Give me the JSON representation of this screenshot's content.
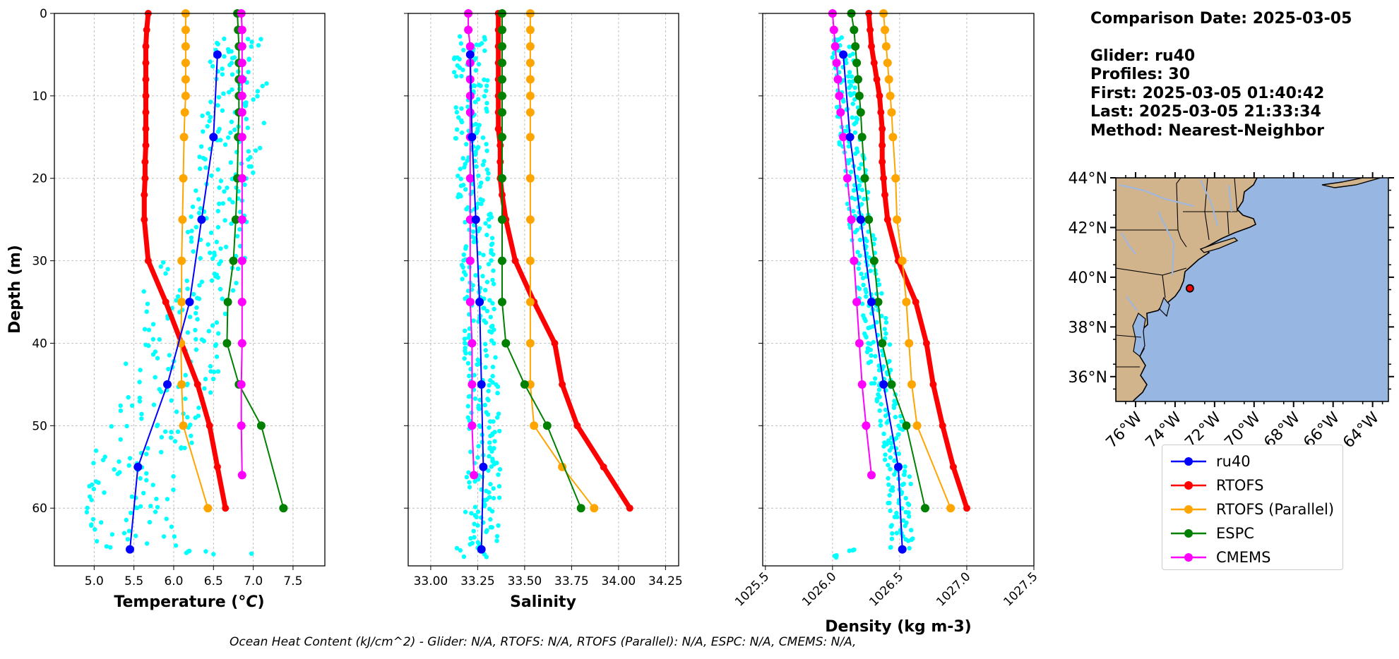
{
  "info": {
    "comparison_date": "Comparison Date: 2025-03-05",
    "glider": "Glider: ru40",
    "profiles": "Profiles: 30",
    "first": "First: 2025-03-05 01:40:42",
    "last": "Last: 2025-03-05 21:33:34",
    "method": "Method: Nearest-Neighbor"
  },
  "footer": "Ocean Heat Content (kJ/cm^2) - Glider: N/A,  RTOFS: N/A,  RTOFS (Parallel): N/A,  ESPC: N/A,  CMEMS: N/A,",
  "colors": {
    "ru40": "#0000ff",
    "RTOFS": "#ff0000",
    "RTOFS (Parallel)": "#ffa500",
    "ESPC": "#008000",
    "CMEMS": "#ff00ff",
    "glider_points": "#00ffff",
    "land": "#d2b48c",
    "ocean": "#97b6e1",
    "rivers": "#9fb7dd"
  },
  "legend": [
    {
      "name": "ru40",
      "color": "#0000ff"
    },
    {
      "name": "RTOFS",
      "color": "#ff0000"
    },
    {
      "name": "RTOFS (Parallel)",
      "color": "#ffa500"
    },
    {
      "name": "ESPC",
      "color": "#008000"
    },
    {
      "name": "CMEMS",
      "color": "#ff00ff"
    }
  ],
  "chart_data": [
    {
      "type": "line",
      "title": "",
      "xlabel": "Temperature (°C)",
      "ylabel": "Depth (m)",
      "xlim": [
        4.5,
        7.9
      ],
      "ylim": [
        67,
        0
      ],
      "yaxis_inverted": true,
      "xticks": [
        "5.0",
        "5.5",
        "6.0",
        "6.5",
        "7.0",
        "7.5"
      ],
      "yticks": [
        "0",
        "10",
        "20",
        "30",
        "40",
        "50",
        "60"
      ],
      "grid": true,
      "glider_cloud_color": "#00ffff",
      "series": [
        {
          "name": "ru40",
          "depth": [
            5,
            15,
            25,
            35,
            45,
            55,
            65
          ],
          "values": [
            6.55,
            6.5,
            6.35,
            6.2,
            5.92,
            5.55,
            5.45
          ]
        },
        {
          "name": "RTOFS",
          "depth": [
            0,
            2,
            4,
            6,
            8,
            10,
            12,
            14,
            16,
            18,
            20,
            22,
            25,
            30,
            35,
            40,
            45,
            50,
            55,
            60
          ],
          "values": [
            5.68,
            5.66,
            5.65,
            5.65,
            5.65,
            5.65,
            5.65,
            5.65,
            5.65,
            5.64,
            5.64,
            5.63,
            5.63,
            5.68,
            5.9,
            6.1,
            6.3,
            6.45,
            6.55,
            6.65
          ]
        },
        {
          "name": "RTOFS (Parallel)",
          "depth": [
            0,
            2,
            4,
            6,
            8,
            10,
            12,
            15,
            20,
            25,
            30,
            35,
            40,
            45,
            50,
            60
          ],
          "values": [
            6.15,
            6.15,
            6.15,
            6.15,
            6.15,
            6.15,
            6.14,
            6.13,
            6.12,
            6.11,
            6.1,
            6.1,
            6.09,
            6.1,
            6.12,
            6.43
          ]
        },
        {
          "name": "ESPC",
          "depth": [
            0,
            2,
            4,
            6,
            8,
            10,
            12,
            15,
            20,
            25,
            30,
            35,
            40,
            45,
            50,
            60
          ],
          "values": [
            6.8,
            6.81,
            6.82,
            6.82,
            6.82,
            6.82,
            6.82,
            6.81,
            6.8,
            6.78,
            6.75,
            6.68,
            6.67,
            6.82,
            7.1,
            7.38
          ]
        },
        {
          "name": "CMEMS",
          "depth": [
            0,
            2,
            4,
            6,
            8,
            10,
            12,
            15,
            20,
            25,
            30,
            35,
            40,
            45,
            50,
            56
          ],
          "values": [
            6.85,
            6.86,
            6.86,
            6.86,
            6.86,
            6.86,
            6.86,
            6.86,
            6.86,
            6.86,
            6.86,
            6.86,
            6.86,
            6.85,
            6.85,
            6.86
          ]
        }
      ]
    },
    {
      "type": "line",
      "title": "",
      "xlabel": "Salinity",
      "ylabel": "",
      "xlim": [
        32.88,
        34.32
      ],
      "ylim": [
        67,
        0
      ],
      "yaxis_inverted": true,
      "xticks": [
        "33.00",
        "33.25",
        "33.50",
        "33.75",
        "34.00",
        "34.25"
      ],
      "grid": true,
      "series": [
        {
          "name": "ru40",
          "depth": [
            5,
            15,
            25,
            35,
            45,
            55,
            65
          ],
          "values": [
            33.21,
            33.22,
            33.24,
            33.26,
            33.27,
            33.28,
            33.27
          ]
        },
        {
          "name": "RTOFS",
          "depth": [
            0,
            2,
            4,
            6,
            8,
            10,
            12,
            14,
            16,
            18,
            20,
            22,
            25,
            30,
            35,
            40,
            45,
            50,
            55,
            60
          ],
          "values": [
            33.36,
            33.36,
            33.36,
            33.36,
            33.36,
            33.36,
            33.36,
            33.36,
            33.37,
            33.37,
            33.37,
            33.38,
            33.4,
            33.45,
            33.55,
            33.66,
            33.7,
            33.78,
            33.92,
            34.06
          ]
        },
        {
          "name": "RTOFS (Parallel)",
          "depth": [
            0,
            2,
            4,
            6,
            8,
            10,
            12,
            15,
            20,
            25,
            30,
            35,
            40,
            45,
            50,
            55,
            60
          ],
          "values": [
            33.53,
            33.53,
            33.53,
            33.53,
            33.53,
            33.53,
            33.53,
            33.53,
            33.53,
            33.53,
            33.53,
            33.53,
            33.53,
            33.53,
            33.55,
            33.7,
            33.87
          ]
        },
        {
          "name": "ESPC",
          "depth": [
            0,
            2,
            4,
            6,
            8,
            10,
            12,
            15,
            20,
            25,
            30,
            35,
            40,
            45,
            50,
            60
          ],
          "values": [
            33.38,
            33.38,
            33.38,
            33.38,
            33.38,
            33.38,
            33.38,
            33.38,
            33.38,
            33.38,
            33.38,
            33.38,
            33.4,
            33.5,
            33.62,
            33.8
          ]
        },
        {
          "name": "CMEMS",
          "depth": [
            0,
            2,
            4,
            6,
            8,
            10,
            12,
            15,
            20,
            25,
            30,
            35,
            40,
            45,
            50,
            56
          ],
          "values": [
            33.2,
            33.2,
            33.21,
            33.21,
            33.21,
            33.21,
            33.21,
            33.21,
            33.21,
            33.21,
            33.21,
            33.21,
            33.22,
            33.22,
            33.22,
            33.23
          ]
        }
      ]
    },
    {
      "type": "line",
      "title": "",
      "xlabel": "Density (kg m-3)",
      "ylabel": "",
      "xlim": [
        1025.48,
        1027.5
      ],
      "ylim": [
        67,
        0
      ],
      "yaxis_inverted": true,
      "xticks": [
        "1025.5",
        "1026.0",
        "1026.5",
        "1027.0",
        "1027.5"
      ],
      "grid": true,
      "series": [
        {
          "name": "ru40",
          "depth": [
            5,
            15,
            25,
            35,
            45,
            55,
            65
          ],
          "values": [
            1026.08,
            1026.13,
            1026.21,
            1026.29,
            1026.38,
            1026.49,
            1026.52
          ]
        },
        {
          "name": "RTOFS",
          "depth": [
            0,
            2,
            4,
            6,
            8,
            10,
            12,
            14,
            16,
            18,
            20,
            22,
            25,
            30,
            35,
            40,
            45,
            50,
            55,
            60
          ],
          "values": [
            1026.27,
            1026.28,
            1026.29,
            1026.31,
            1026.33,
            1026.35,
            1026.36,
            1026.37,
            1026.37,
            1026.37,
            1026.38,
            1026.39,
            1026.41,
            1026.49,
            1026.62,
            1026.7,
            1026.75,
            1026.82,
            1026.9,
            1027.0
          ]
        },
        {
          "name": "RTOFS (Parallel)",
          "depth": [
            0,
            2,
            4,
            6,
            8,
            10,
            12,
            15,
            20,
            25,
            30,
            35,
            40,
            45,
            50,
            60
          ],
          "values": [
            1026.38,
            1026.39,
            1026.4,
            1026.41,
            1026.42,
            1026.43,
            1026.44,
            1026.45,
            1026.47,
            1026.48,
            1026.52,
            1026.55,
            1026.57,
            1026.59,
            1026.63,
            1026.88
          ]
        },
        {
          "name": "ESPC",
          "depth": [
            0,
            2,
            4,
            6,
            8,
            10,
            12,
            15,
            20,
            25,
            30,
            35,
            40,
            45,
            50,
            60
          ],
          "values": [
            1026.14,
            1026.16,
            1026.17,
            1026.18,
            1026.19,
            1026.2,
            1026.21,
            1026.22,
            1026.24,
            1026.27,
            1026.31,
            1026.34,
            1026.37,
            1026.44,
            1026.55,
            1026.69
          ]
        },
        {
          "name": "CMEMS",
          "depth": [
            0,
            2,
            4,
            6,
            8,
            10,
            12,
            15,
            20,
            25,
            30,
            35,
            40,
            45,
            50,
            56
          ],
          "values": [
            1026.0,
            1026.01,
            1026.02,
            1026.03,
            1026.04,
            1026.05,
            1026.06,
            1026.08,
            1026.11,
            1026.14,
            1026.16,
            1026.18,
            1026.2,
            1026.22,
            1026.25,
            1026.29
          ]
        }
      ]
    }
  ],
  "map": {
    "lat_labels": [
      "44°N",
      "42°N",
      "40°N",
      "38°N",
      "36°N"
    ],
    "lat_values": [
      44,
      42,
      40,
      38,
      36
    ],
    "lon_labels": [
      "76°W",
      "74°W",
      "72°W",
      "70°W",
      "68°W",
      "66°W",
      "64°W"
    ],
    "lon_values": [
      -76,
      -74,
      -72,
      -70,
      -68,
      -66,
      -64
    ],
    "extent": {
      "lon": [
        -77,
        -63.2
      ],
      "lat": [
        35,
        44
      ]
    },
    "glider_position": {
      "lat": 39.55,
      "lon": -73.25
    }
  }
}
